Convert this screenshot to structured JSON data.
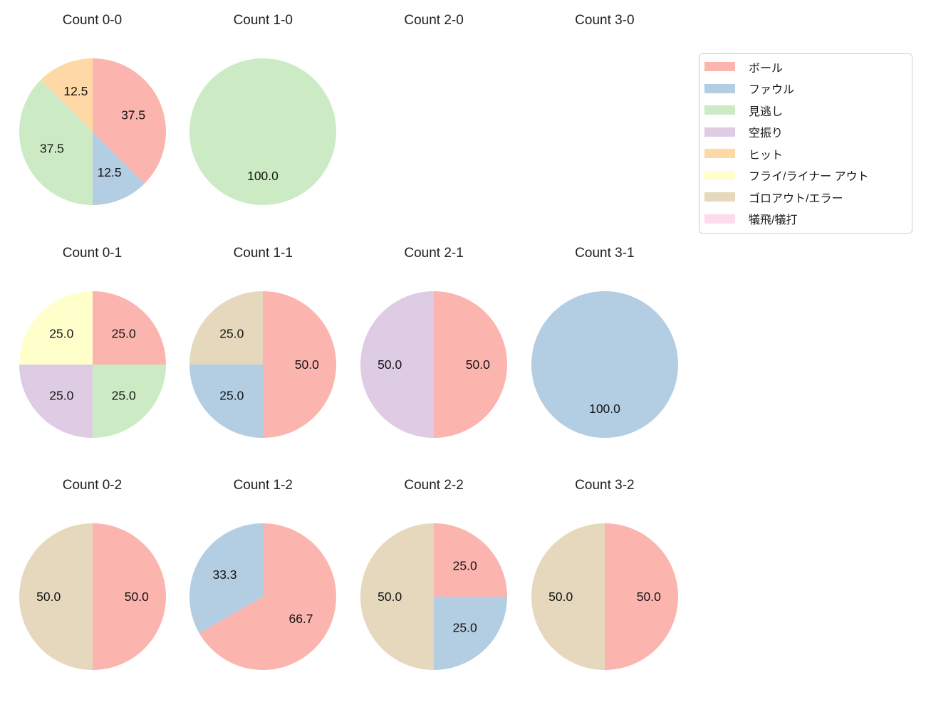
{
  "figure": {
    "background": "#ffffff",
    "text_color": "#1f1f1f"
  },
  "chart_data": {
    "type": "pie",
    "layout": {
      "grid_rows": 3,
      "grid_cols": 4,
      "legend_position": "upper-right",
      "labels_inside": true,
      "start_angle_deg": 90,
      "direction": "clockwise",
      "pct_distance": 0.6,
      "pie_radius_px": 103
    },
    "legend": {
      "entries": [
        {
          "label": "ボール",
          "color": "#fbb4ae"
        },
        {
          "label": "ファウル",
          "color": "#b3cde3"
        },
        {
          "label": "見逃し",
          "color": "#ccebc5"
        },
        {
          "label": "空振り",
          "color": "#decbe4"
        },
        {
          "label": "ヒット",
          "color": "#fed9a6"
        },
        {
          "label": "フライ/ライナー アウト",
          "color": "#ffffcc"
        },
        {
          "label": "ゴロアウト/エラー",
          "color": "#e5d8bd"
        },
        {
          "label": "犠飛/犠打",
          "color": "#fddaec"
        }
      ]
    },
    "charts": [
      {
        "title": "Count 0-0",
        "slices": [
          {
            "label": "ボール",
            "value": 37.5
          },
          {
            "label": "ファウル",
            "value": 12.5
          },
          {
            "label": "見逃し",
            "value": 37.5
          },
          {
            "label": "ヒット",
            "value": 12.5
          }
        ]
      },
      {
        "title": "Count 1-0",
        "slices": [
          {
            "label": "見逃し",
            "value": 100.0
          }
        ]
      },
      {
        "title": "Count 2-0",
        "slices": []
      },
      {
        "title": "Count 3-0",
        "slices": []
      },
      {
        "title": "Count 0-1",
        "slices": [
          {
            "label": "ボール",
            "value": 25.0
          },
          {
            "label": "見逃し",
            "value": 25.0
          },
          {
            "label": "空振り",
            "value": 25.0
          },
          {
            "label": "フライ/ライナー アウト",
            "value": 25.0
          }
        ]
      },
      {
        "title": "Count 1-1",
        "slices": [
          {
            "label": "ボール",
            "value": 50.0
          },
          {
            "label": "ファウル",
            "value": 25.0
          },
          {
            "label": "ゴロアウト/エラー",
            "value": 25.0
          }
        ]
      },
      {
        "title": "Count 2-1",
        "slices": [
          {
            "label": "ボール",
            "value": 50.0
          },
          {
            "label": "空振り",
            "value": 50.0
          }
        ]
      },
      {
        "title": "Count 3-1",
        "slices": [
          {
            "label": "ファウル",
            "value": 100.0
          }
        ]
      },
      {
        "title": "Count 0-2",
        "slices": [
          {
            "label": "ボール",
            "value": 50.0
          },
          {
            "label": "ゴロアウト/エラー",
            "value": 50.0
          }
        ]
      },
      {
        "title": "Count 1-2",
        "slices": [
          {
            "label": "ボール",
            "value": 66.7
          },
          {
            "label": "ファウル",
            "value": 33.3
          }
        ]
      },
      {
        "title": "Count 2-2",
        "slices": [
          {
            "label": "ボール",
            "value": 25.0
          },
          {
            "label": "ファウル",
            "value": 25.0
          },
          {
            "label": "ゴロアウト/エラー",
            "value": 50.0
          }
        ]
      },
      {
        "title": "Count 3-2",
        "slices": [
          {
            "label": "ボール",
            "value": 50.0
          },
          {
            "label": "ゴロアウト/エラー",
            "value": 50.0
          }
        ]
      }
    ]
  }
}
